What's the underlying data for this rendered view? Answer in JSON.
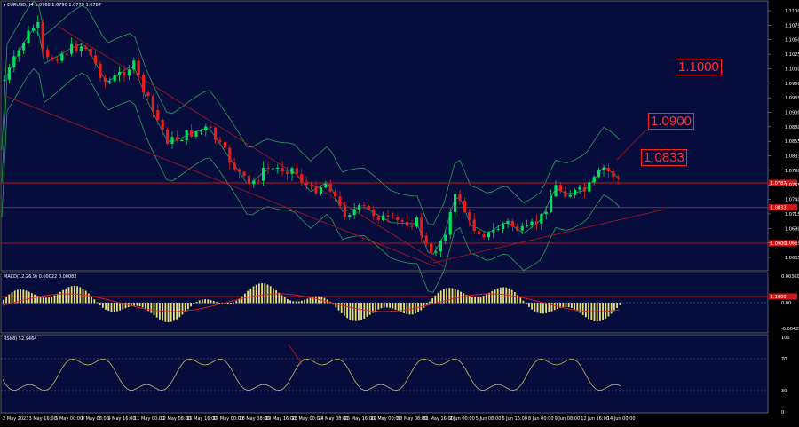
{
  "window": {
    "symbol_header": "EURUSD,H4",
    "ohlc": "1.0788 1.0790 1.0779 1.0787"
  },
  "colors": {
    "background": "#000000",
    "pane": "#060c3c",
    "candle_up": "#00e05a",
    "candle_down": "#e81c1c",
    "bollinger": "#2e9e5a",
    "level_lines": "#c81414",
    "macd_hist": "#e8e070",
    "macd_signal": "#e82020",
    "rsi_line": "#c8b864",
    "axis_text": "#ffffff"
  },
  "main": {
    "price_axis": [
      "1.1100",
      "1.1075",
      "1.1050",
      "1.1025",
      "1.1000",
      "1.0960",
      "1.0935",
      "1.0900",
      "1.0880",
      "1.0855",
      "1.0833",
      "1.0790",
      "1.0765",
      "1.0740",
      "1.0715",
      "1.0690",
      "1.0665",
      "1.0635"
    ],
    "levels": [
      {
        "label": "1.1000",
        "price": 1.1,
        "tag": "1.1000"
      },
      {
        "label": "1.0900",
        "price": 1.09,
        "tag": "1.0900"
      },
      {
        "label": "1.0833",
        "price": 1.0833,
        "tag": "1.0833"
      },
      {
        "label": "",
        "price": 1.0787,
        "tag": "1.0787"
      }
    ]
  },
  "macd": {
    "label": "MACD(12,26,9) 0.00022 0.00082",
    "axis": [
      "0.00360",
      "0.00",
      "-0.00425"
    ]
  },
  "rsi": {
    "label": "RSI(8) 52.9464",
    "axis": [
      "100",
      "70",
      "30",
      "0"
    ]
  },
  "time_axis": [
    "2 May 2023",
    "3 May 16:00",
    "5 May 00:00",
    "8 May 08:00",
    "9 May 16:00",
    "11 May 00:00",
    "12 May 08:00",
    "15 May 16:00",
    "17 May 00:00",
    "18 May 08:00",
    "19 May 16:00",
    "23 May 00:00",
    "24 May 08:00",
    "25 May 16:00",
    "29 May 00:00",
    "30 May 08:00",
    "31 May 16:00",
    "2 Jun 00:00",
    "5 Jun 08:00",
    "6 Jun 16:00",
    "8 Jun 00:00",
    "9 Jun 08:00",
    "12 Jun 16:00",
    "14 Jun 00:00"
  ]
}
